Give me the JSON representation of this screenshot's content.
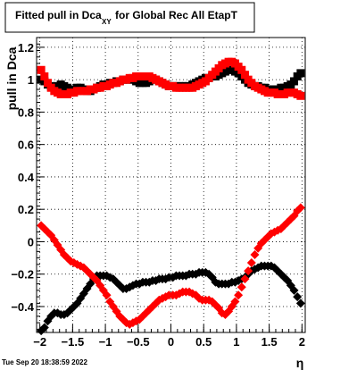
{
  "title": {
    "prefix": "Fitted pull in Dca",
    "subscript": "XY",
    "suffix": "for Global Rec All EtapT"
  },
  "timestamp": "Tue Sep 20 18:38:59 2022",
  "chart_data": {
    "type": "scatter",
    "title": "Fitted pull in DcaXY for Global Rec All EtapT",
    "xlabel": "η",
    "ylabel": "pull in Dca",
    "xlim": [
      -2.05,
      2.05
    ],
    "ylim": [
      -0.56,
      1.26
    ],
    "grid": true,
    "xticks": [
      -2,
      -1.5,
      -1,
      -0.5,
      0,
      0.5,
      1,
      1.5,
      2
    ],
    "xtick_labels": [
      "−2",
      "−1.5",
      "−1",
      "−0.5",
      "0",
      "0.5",
      "1",
      "1.5",
      "2"
    ],
    "yticks": [
      -0.4,
      -0.2,
      0,
      0.2,
      0.4,
      0.6,
      0.8,
      1,
      1.2
    ],
    "ytick_labels": [
      "−0.4",
      "−0.2",
      "0",
      "0.2",
      "0.4",
      "0.6",
      "0.8",
      "1",
      "1.2"
    ],
    "series": [
      {
        "color": "#000000",
        "marker": "square",
        "x": [
          -1.98,
          -1.93,
          -1.88,
          -1.83,
          -1.78,
          -1.73,
          -1.68,
          -1.63,
          -1.58,
          -1.53,
          -1.48,
          -1.43,
          -1.38,
          -1.33,
          -1.28,
          -1.23,
          -1.18,
          -1.13,
          -1.08,
          -1.03,
          -0.98,
          -0.93,
          -0.88,
          -0.83,
          -0.78,
          -0.73,
          -0.68,
          -0.63,
          -0.58,
          -0.53,
          -0.48,
          -0.43,
          -0.38,
          -0.33,
          -0.28,
          -0.23,
          -0.18,
          -0.13,
          -0.08,
          -0.03,
          0.03,
          0.08,
          0.13,
          0.18,
          0.23,
          0.28,
          0.33,
          0.38,
          0.43,
          0.48,
          0.53,
          0.58,
          0.63,
          0.68,
          0.73,
          0.78,
          0.83,
          0.88,
          0.93,
          0.98,
          1.03,
          1.08,
          1.13,
          1.18,
          1.23,
          1.28,
          1.33,
          1.38,
          1.43,
          1.48,
          1.53,
          1.58,
          1.63,
          1.68,
          1.73,
          1.78,
          1.83,
          1.88,
          1.93,
          1.98
        ],
        "y": [
          1.0,
          0.99,
          0.97,
          0.96,
          0.96,
          0.96,
          0.97,
          0.96,
          0.95,
          0.94,
          0.94,
          0.95,
          0.95,
          0.94,
          0.93,
          0.93,
          0.94,
          0.95,
          0.96,
          0.97,
          0.97,
          0.98,
          0.98,
          0.99,
          0.99,
          1.0,
          1.0,
          1.0,
          1.0,
          0.99,
          0.98,
          0.98,
          0.98,
          0.99,
          1.0,
          1.0,
          0.99,
          0.98,
          0.97,
          0.96,
          0.96,
          0.96,
          0.96,
          0.96,
          0.96,
          0.96,
          0.97,
          0.98,
          0.99,
          1.0,
          1.01,
          1.01,
          1.02,
          1.02,
          1.03,
          1.04,
          1.05,
          1.06,
          1.06,
          1.05,
          1.04,
          1.02,
          1.0,
          0.98,
          0.97,
          0.96,
          0.96,
          0.95,
          0.95,
          0.94,
          0.94,
          0.94,
          0.94,
          0.95,
          0.95,
          0.96,
          0.97,
          0.99,
          1.02,
          1.04
        ]
      },
      {
        "color": "#ff0000",
        "marker": "square",
        "x": [
          -1.98,
          -1.93,
          -1.88,
          -1.83,
          -1.78,
          -1.73,
          -1.68,
          -1.63,
          -1.58,
          -1.53,
          -1.48,
          -1.43,
          -1.38,
          -1.33,
          -1.28,
          -1.23,
          -1.18,
          -1.13,
          -1.08,
          -1.03,
          -0.98,
          -0.93,
          -0.88,
          -0.83,
          -0.78,
          -0.73,
          -0.68,
          -0.63,
          -0.58,
          -0.53,
          -0.48,
          -0.43,
          -0.38,
          -0.33,
          -0.28,
          -0.23,
          -0.18,
          -0.13,
          -0.08,
          -0.03,
          0.03,
          0.08,
          0.13,
          0.18,
          0.23,
          0.28,
          0.33,
          0.38,
          0.43,
          0.48,
          0.53,
          0.58,
          0.63,
          0.68,
          0.73,
          0.78,
          0.83,
          0.88,
          0.93,
          0.98,
          1.03,
          1.08,
          1.13,
          1.18,
          1.23,
          1.28,
          1.33,
          1.38,
          1.43,
          1.48,
          1.53,
          1.58,
          1.63,
          1.68,
          1.73,
          1.78,
          1.83,
          1.88,
          1.93,
          1.98
        ],
        "y": [
          1.06,
          1.02,
          0.98,
          0.95,
          0.93,
          0.92,
          0.91,
          0.91,
          0.91,
          0.92,
          0.92,
          0.93,
          0.93,
          0.93,
          0.93,
          0.94,
          0.94,
          0.95,
          0.95,
          0.96,
          0.96,
          0.97,
          0.98,
          0.98,
          0.99,
          1.0,
          1.0,
          1.01,
          1.01,
          1.02,
          1.02,
          1.02,
          1.02,
          1.02,
          1.01,
          1.0,
          0.99,
          0.98,
          0.97,
          0.96,
          0.96,
          0.95,
          0.95,
          0.95,
          0.95,
          0.95,
          0.95,
          0.96,
          0.97,
          0.98,
          0.99,
          1.01,
          1.03,
          1.05,
          1.07,
          1.09,
          1.1,
          1.11,
          1.11,
          1.1,
          1.08,
          1.06,
          1.03,
          1.0,
          0.98,
          0.96,
          0.95,
          0.94,
          0.93,
          0.92,
          0.92,
          0.92,
          0.91,
          0.91,
          0.91,
          0.92,
          0.92,
          0.92,
          0.91,
          0.9
        ]
      },
      {
        "color": "#000000",
        "marker": "diamond",
        "x": [
          -1.98,
          -1.93,
          -1.88,
          -1.83,
          -1.78,
          -1.73,
          -1.68,
          -1.63,
          -1.58,
          -1.53,
          -1.48,
          -1.43,
          -1.38,
          -1.33,
          -1.28,
          -1.23,
          -1.18,
          -1.13,
          -1.08,
          -1.03,
          -0.98,
          -0.93,
          -0.88,
          -0.83,
          -0.78,
          -0.73,
          -0.68,
          -0.63,
          -0.58,
          -0.53,
          -0.48,
          -0.43,
          -0.38,
          -0.33,
          -0.28,
          -0.23,
          -0.18,
          -0.13,
          -0.08,
          -0.03,
          0.03,
          0.08,
          0.13,
          0.18,
          0.23,
          0.28,
          0.33,
          0.38,
          0.43,
          0.48,
          0.53,
          0.58,
          0.63,
          0.68,
          0.73,
          0.78,
          0.83,
          0.88,
          0.93,
          0.98,
          1.03,
          1.08,
          1.13,
          1.18,
          1.23,
          1.28,
          1.33,
          1.38,
          1.43,
          1.48,
          1.53,
          1.58,
          1.63,
          1.68,
          1.73,
          1.78,
          1.83,
          1.88,
          1.93,
          1.98
        ],
        "y": [
          -0.55,
          -0.53,
          -0.49,
          -0.46,
          -0.44,
          -0.44,
          -0.45,
          -0.45,
          -0.44,
          -0.42,
          -0.4,
          -0.38,
          -0.35,
          -0.32,
          -0.29,
          -0.26,
          -0.23,
          -0.21,
          -0.21,
          -0.21,
          -0.21,
          -0.22,
          -0.23,
          -0.25,
          -0.27,
          -0.29,
          -0.29,
          -0.28,
          -0.27,
          -0.26,
          -0.26,
          -0.25,
          -0.25,
          -0.25,
          -0.24,
          -0.24,
          -0.23,
          -0.23,
          -0.23,
          -0.22,
          -0.22,
          -0.21,
          -0.21,
          -0.21,
          -0.21,
          -0.2,
          -0.2,
          -0.2,
          -0.19,
          -0.19,
          -0.19,
          -0.2,
          -0.22,
          -0.25,
          -0.26,
          -0.26,
          -0.26,
          -0.26,
          -0.25,
          -0.25,
          -0.24,
          -0.23,
          -0.22,
          -0.2,
          -0.18,
          -0.17,
          -0.16,
          -0.15,
          -0.15,
          -0.15,
          -0.15,
          -0.16,
          -0.18,
          -0.2,
          -0.22,
          -0.24,
          -0.27,
          -0.3,
          -0.34,
          -0.38
        ]
      },
      {
        "color": "#ff0000",
        "marker": "diamond",
        "x": [
          -1.98,
          -1.93,
          -1.88,
          -1.83,
          -1.78,
          -1.73,
          -1.68,
          -1.63,
          -1.58,
          -1.53,
          -1.48,
          -1.43,
          -1.38,
          -1.33,
          -1.28,
          -1.23,
          -1.18,
          -1.13,
          -1.08,
          -1.03,
          -0.98,
          -0.93,
          -0.88,
          -0.83,
          -0.78,
          -0.73,
          -0.68,
          -0.63,
          -0.58,
          -0.53,
          -0.48,
          -0.43,
          -0.38,
          -0.33,
          -0.28,
          -0.23,
          -0.18,
          -0.13,
          -0.08,
          -0.03,
          0.03,
          0.08,
          0.13,
          0.18,
          0.23,
          0.28,
          0.33,
          0.38,
          0.43,
          0.48,
          0.53,
          0.58,
          0.63,
          0.68,
          0.73,
          0.78,
          0.83,
          0.88,
          0.93,
          0.98,
          1.03,
          1.08,
          1.13,
          1.18,
          1.23,
          1.28,
          1.33,
          1.38,
          1.43,
          1.48,
          1.53,
          1.58,
          1.63,
          1.68,
          1.73,
          1.78,
          1.83,
          1.88,
          1.93,
          1.98
        ],
        "y": [
          0.1,
          0.08,
          0.06,
          0.04,
          0.01,
          -0.02,
          -0.05,
          -0.08,
          -0.1,
          -0.12,
          -0.13,
          -0.14,
          -0.15,
          -0.16,
          -0.18,
          -0.2,
          -0.22,
          -0.24,
          -0.27,
          -0.3,
          -0.33,
          -0.37,
          -0.4,
          -0.43,
          -0.46,
          -0.48,
          -0.5,
          -0.51,
          -0.5,
          -0.49,
          -0.48,
          -0.46,
          -0.44,
          -0.42,
          -0.4,
          -0.38,
          -0.36,
          -0.35,
          -0.34,
          -0.33,
          -0.33,
          -0.33,
          -0.32,
          -0.31,
          -0.31,
          -0.31,
          -0.32,
          -0.33,
          -0.35,
          -0.36,
          -0.36,
          -0.36,
          -0.37,
          -0.39,
          -0.41,
          -0.44,
          -0.45,
          -0.43,
          -0.4,
          -0.37,
          -0.33,
          -0.28,
          -0.23,
          -0.18,
          -0.13,
          -0.08,
          -0.04,
          -0.01,
          0.01,
          0.03,
          0.05,
          0.06,
          0.07,
          0.08,
          0.1,
          0.12,
          0.14,
          0.16,
          0.19,
          0.21
        ]
      }
    ]
  }
}
